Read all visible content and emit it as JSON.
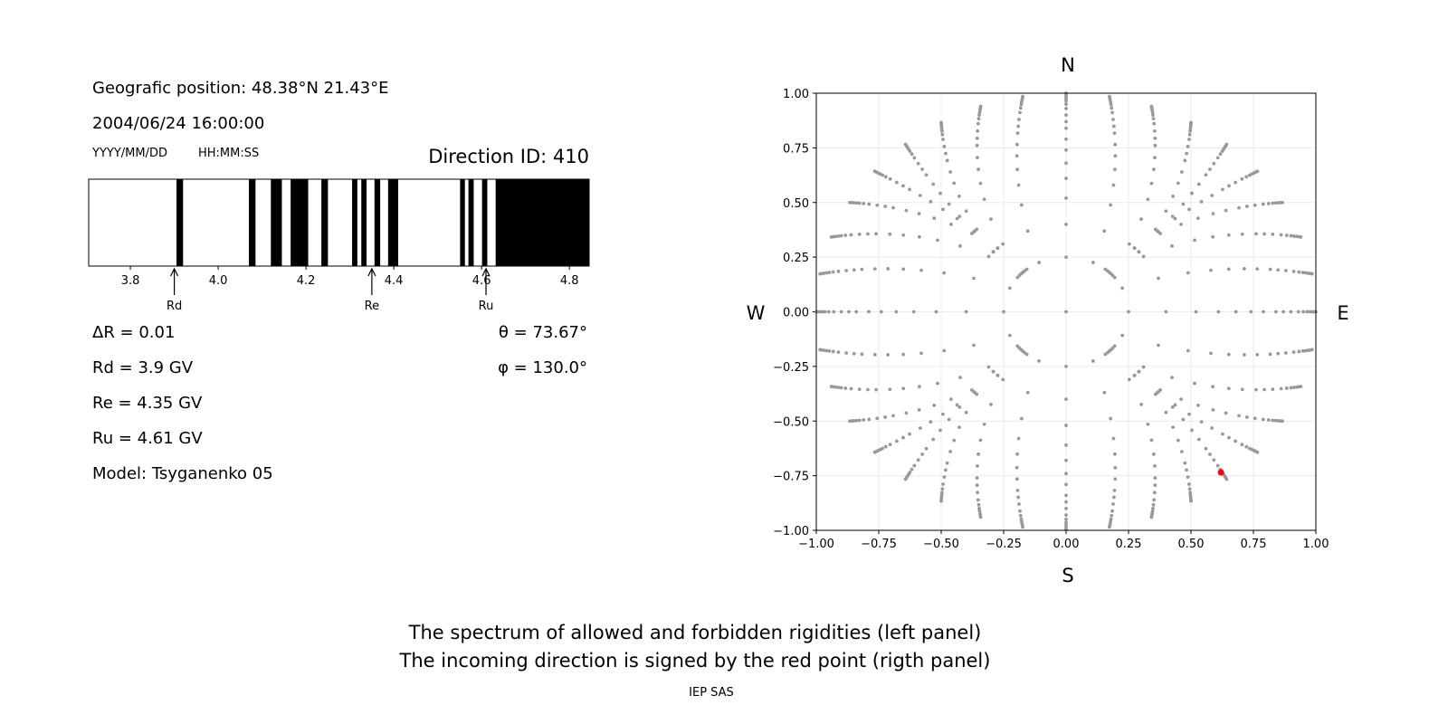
{
  "info": {
    "position": "Geografic position: 48.38°N 21.43°E",
    "datetime": "2004/06/24 16:00:00",
    "date_hint": "YYYY/MM/DD",
    "time_hint": "HH:MM:SS",
    "direction_id": "Direction ID: 410",
    "delta_r": "ΔR = 0.01",
    "rd": "Rd = 3.9 GV",
    "re": "Re = 4.35 GV",
    "ru": "Ru = 4.61 GV",
    "model": "Model: Tsyganenko 05",
    "theta": "θ = 73.67°",
    "phi": "φ = 130.0°"
  },
  "caption": {
    "line1": "The spectrum of allowed and forbidden rigidities (left panel)",
    "line2": "The incoming direction is signed by the red point (rigth panel)",
    "credit": "IEP SAS"
  },
  "chart_data": [
    {
      "type": "spectrum",
      "xlim": [
        3.705,
        4.845
      ],
      "xticks": [
        "3.8",
        "4.0",
        "4.2",
        "4.4",
        "4.6",
        "4.8"
      ],
      "forbidden_color": "#000000",
      "allowed_color": "#ffffff",
      "forbidden_bands": [
        [
          3.905,
          3.92
        ],
        [
          4.07,
          4.085
        ],
        [
          4.12,
          4.145
        ],
        [
          4.165,
          4.205
        ],
        [
          4.235,
          4.25
        ],
        [
          4.305,
          4.317
        ],
        [
          4.326,
          4.338
        ],
        [
          4.356,
          4.369
        ],
        [
          4.387,
          4.41
        ],
        [
          4.551,
          4.562
        ],
        [
          4.57,
          4.582
        ],
        [
          4.601,
          4.613
        ],
        [
          4.632,
          4.845
        ]
      ],
      "markers": [
        {
          "label": "Rd",
          "value": 3.9
        },
        {
          "label": "Re",
          "value": 4.35
        },
        {
          "label": "Ru",
          "value": 4.61
        }
      ]
    },
    {
      "type": "scatter",
      "xlim": [
        -1,
        1
      ],
      "ylim": [
        -1,
        1
      ],
      "xticks": [
        "−1.00",
        "−0.75",
        "−0.50",
        "−0.25",
        "0.00",
        "0.25",
        "0.50",
        "0.75",
        "1.00"
      ],
      "yticks": [
        "−1.00",
        "−0.75",
        "−0.50",
        "−0.25",
        "0.00",
        "0.25",
        "0.50",
        "0.75",
        "1.00"
      ],
      "grid": true,
      "compass": {
        "north": "N",
        "south": "S",
        "west": "W",
        "east": "E"
      },
      "direction_grid": {
        "color": "#999999",
        "azimuth_step_deg": 10,
        "radii": [
          0.25,
          0.4,
          0.52,
          0.61,
          0.68,
          0.74,
          0.79,
          0.84,
          0.87,
          0.9,
          0.93,
          0.95,
          0.965,
          0.975,
          0.985,
          0.993,
          1.0
        ],
        "center_point": true
      },
      "highlight": {
        "x": 0.62,
        "y": -0.735,
        "color": "#ff0000"
      }
    }
  ]
}
